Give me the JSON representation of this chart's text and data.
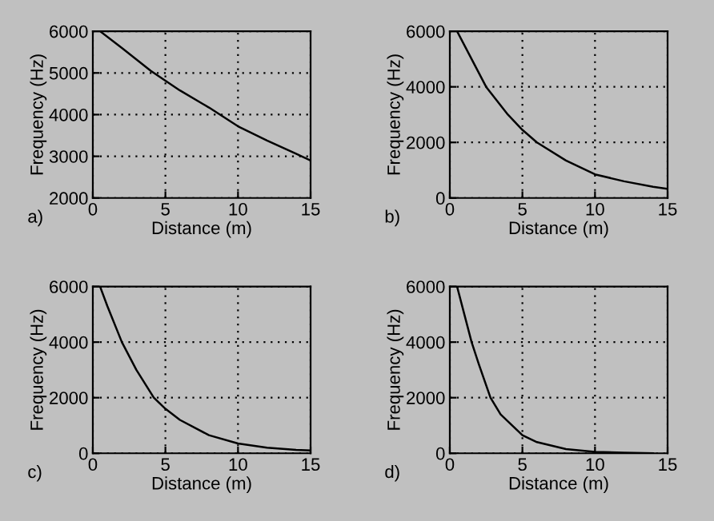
{
  "chart_data": [
    {
      "type": "line",
      "xlabel": "Distance (m)",
      "ylabel": "Frequency (Hz)",
      "annotations": [
        "a)"
      ],
      "xlim": [
        0,
        15
      ],
      "ylim": [
        2000,
        6000
      ],
      "xticks": [
        0,
        5,
        10,
        15
      ],
      "yticks": [
        2000,
        3000,
        4000,
        5000,
        6000
      ],
      "grid": true,
      "series": [
        {
          "color": "#000000",
          "x": [
            0.5,
            2,
            4,
            6,
            8,
            10,
            12,
            14,
            15
          ],
          "values": [
            6000,
            5600,
            5050,
            4580,
            4170,
            3720,
            3380,
            3060,
            2900
          ]
        }
      ]
    },
    {
      "type": "line",
      "xlabel": "Distance (m)",
      "ylabel": "Frequency (Hz)",
      "annotations": [
        "b)"
      ],
      "xlim": [
        0,
        15
      ],
      "ylim": [
        0,
        6000
      ],
      "xticks": [
        0,
        5,
        10,
        15
      ],
      "yticks": [
        0,
        2000,
        4000,
        6000
      ],
      "grid": true,
      "series": [
        {
          "color": "#000000",
          "x": [
            0.5,
            1.5,
            2.5,
            4,
            5,
            6,
            8,
            10,
            12,
            14,
            15
          ],
          "values": [
            6000,
            5000,
            4000,
            3000,
            2450,
            2000,
            1350,
            850,
            600,
            400,
            330
          ]
        }
      ]
    },
    {
      "type": "line",
      "xlabel": "Distance (m)",
      "ylabel": "Frequency (Hz)",
      "annotations": [
        "c)"
      ],
      "xlim": [
        0,
        15
      ],
      "ylim": [
        0,
        6000
      ],
      "xticks": [
        0,
        5,
        10,
        15
      ],
      "yticks": [
        0,
        2000,
        4000,
        6000
      ],
      "grid": true,
      "series": [
        {
          "color": "#000000",
          "x": [
            0.5,
            1,
            2,
            3,
            4.2,
            5,
            6,
            8,
            10,
            12,
            14,
            15
          ],
          "values": [
            6000,
            5300,
            4000,
            3000,
            2000,
            1600,
            1200,
            650,
            350,
            200,
            120,
            100
          ]
        }
      ]
    },
    {
      "type": "line",
      "xlabel": "Distance (m)",
      "ylabel": "Frequency (Hz)",
      "annotations": [
        "d)"
      ],
      "xlim": [
        0,
        15
      ],
      "ylim": [
        0,
        6000
      ],
      "xticks": [
        0,
        5,
        10,
        15
      ],
      "yticks": [
        0,
        2000,
        4000,
        6000
      ],
      "grid": true,
      "series": [
        {
          "color": "#000000",
          "x": [
            0.5,
            1,
            1.5,
            2,
            2.8,
            3.5,
            5,
            6,
            8,
            10,
            12,
            14
          ],
          "values": [
            6000,
            5000,
            4000,
            3200,
            2000,
            1400,
            650,
            400,
            150,
            50,
            20,
            0
          ]
        }
      ]
    }
  ]
}
